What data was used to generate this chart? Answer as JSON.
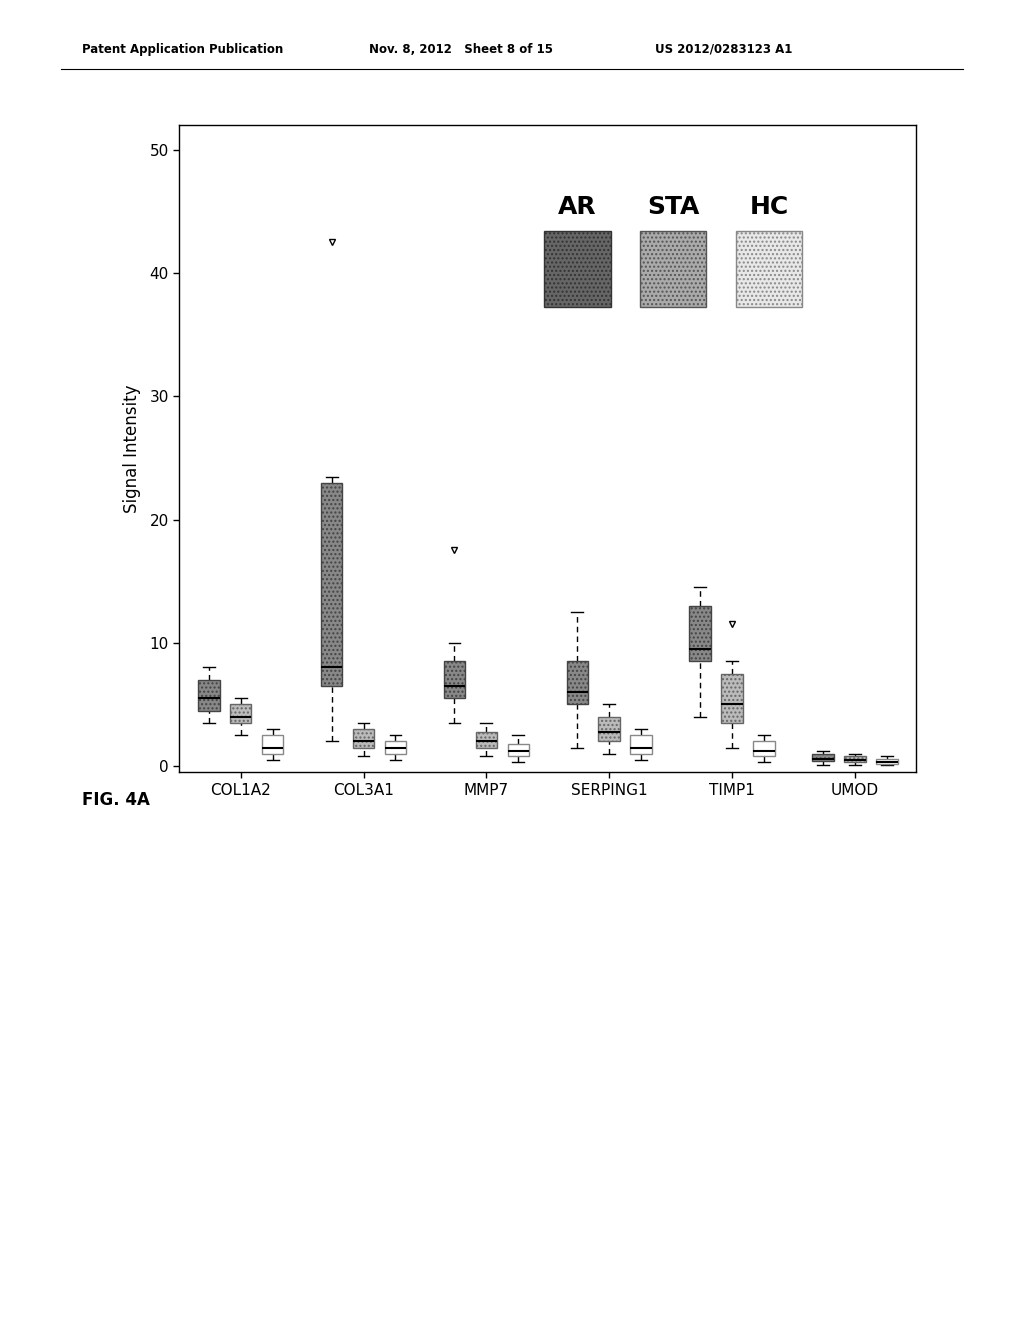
{
  "genes": [
    "COL1A2",
    "COL3A1",
    "MMP7",
    "SERPING1",
    "TIMP1",
    "UMOD"
  ],
  "groups": [
    "AR",
    "STA",
    "HC"
  ],
  "group_hatches": [
    "....",
    "....",
    ""
  ],
  "group_facecolors": [
    "#888888",
    "#bbbbbb",
    "#ffffff"
  ],
  "group_edgecolors": [
    "#444444",
    "#666666",
    "#888888"
  ],
  "ylabel": "Signal Intensity",
  "ylim": [
    -0.5,
    52
  ],
  "yticks": [
    0,
    10,
    20,
    30,
    40,
    50
  ],
  "figcaption": "FIG. 4A",
  "header_left": "Patent Application Publication",
  "header_mid": "Nov. 8, 2012   Sheet 8 of 15",
  "header_right": "US 2012/0283123 A1",
  "legend_colors": [
    "#666666",
    "#aaaaaa",
    "#e8e8e8"
  ],
  "legend_hatches": [
    "....",
    "....",
    "...."
  ],
  "legend_edge": [
    "#333333",
    "#555555",
    "#888888"
  ],
  "boxes": {
    "COL1A2": {
      "AR": {
        "q1": 4.5,
        "median": 5.5,
        "q3": 7.0,
        "whislo": 3.5,
        "whishi": 8.0,
        "fliers": []
      },
      "STA": {
        "q1": 3.5,
        "median": 4.0,
        "q3": 5.0,
        "whislo": 2.5,
        "whishi": 5.5,
        "fliers": []
      },
      "HC": {
        "q1": 1.0,
        "median": 1.5,
        "q3": 2.5,
        "whislo": 0.5,
        "whishi": 3.0,
        "fliers": []
      }
    },
    "COL3A1": {
      "AR": {
        "q1": 6.5,
        "median": 8.0,
        "q3": 23.0,
        "whislo": 2.0,
        "whishi": 23.5,
        "fliers": [
          42.5
        ]
      },
      "STA": {
        "q1": 1.5,
        "median": 2.0,
        "q3": 3.0,
        "whislo": 0.8,
        "whishi": 3.5,
        "fliers": []
      },
      "HC": {
        "q1": 1.0,
        "median": 1.5,
        "q3": 2.0,
        "whislo": 0.5,
        "whishi": 2.5,
        "fliers": []
      }
    },
    "MMP7": {
      "AR": {
        "q1": 5.5,
        "median": 6.5,
        "q3": 8.5,
        "whislo": 3.5,
        "whishi": 10.0,
        "fliers": [
          17.5
        ]
      },
      "STA": {
        "q1": 1.5,
        "median": 2.0,
        "q3": 2.8,
        "whislo": 0.8,
        "whishi": 3.5,
        "fliers": []
      },
      "HC": {
        "q1": 0.8,
        "median": 1.2,
        "q3": 1.8,
        "whislo": 0.3,
        "whishi": 2.5,
        "fliers": []
      }
    },
    "SERPING1": {
      "AR": {
        "q1": 5.0,
        "median": 6.0,
        "q3": 8.5,
        "whislo": 1.5,
        "whishi": 12.5,
        "fliers": []
      },
      "STA": {
        "q1": 2.0,
        "median": 2.8,
        "q3": 4.0,
        "whislo": 1.0,
        "whishi": 5.0,
        "fliers": []
      },
      "HC": {
        "q1": 1.0,
        "median": 1.5,
        "q3": 2.5,
        "whislo": 0.5,
        "whishi": 3.0,
        "fliers": []
      }
    },
    "TIMP1": {
      "AR": {
        "q1": 8.5,
        "median": 9.5,
        "q3": 13.0,
        "whislo": 4.0,
        "whishi": 14.5,
        "fliers": []
      },
      "STA": {
        "q1": 3.5,
        "median": 5.0,
        "q3": 7.5,
        "whislo": 1.5,
        "whishi": 8.5,
        "fliers": [
          11.5
        ]
      },
      "HC": {
        "q1": 0.8,
        "median": 1.2,
        "q3": 2.0,
        "whislo": 0.3,
        "whishi": 2.5,
        "fliers": []
      }
    },
    "UMOD": {
      "AR": {
        "q1": 0.4,
        "median": 0.6,
        "q3": 1.0,
        "whislo": 0.1,
        "whishi": 1.2,
        "fliers": []
      },
      "STA": {
        "q1": 0.3,
        "median": 0.5,
        "q3": 0.8,
        "whislo": 0.1,
        "whishi": 1.0,
        "fliers": []
      },
      "HC": {
        "q1": 0.2,
        "median": 0.3,
        "q3": 0.6,
        "whislo": 0.05,
        "whishi": 0.8,
        "fliers": []
      }
    }
  }
}
